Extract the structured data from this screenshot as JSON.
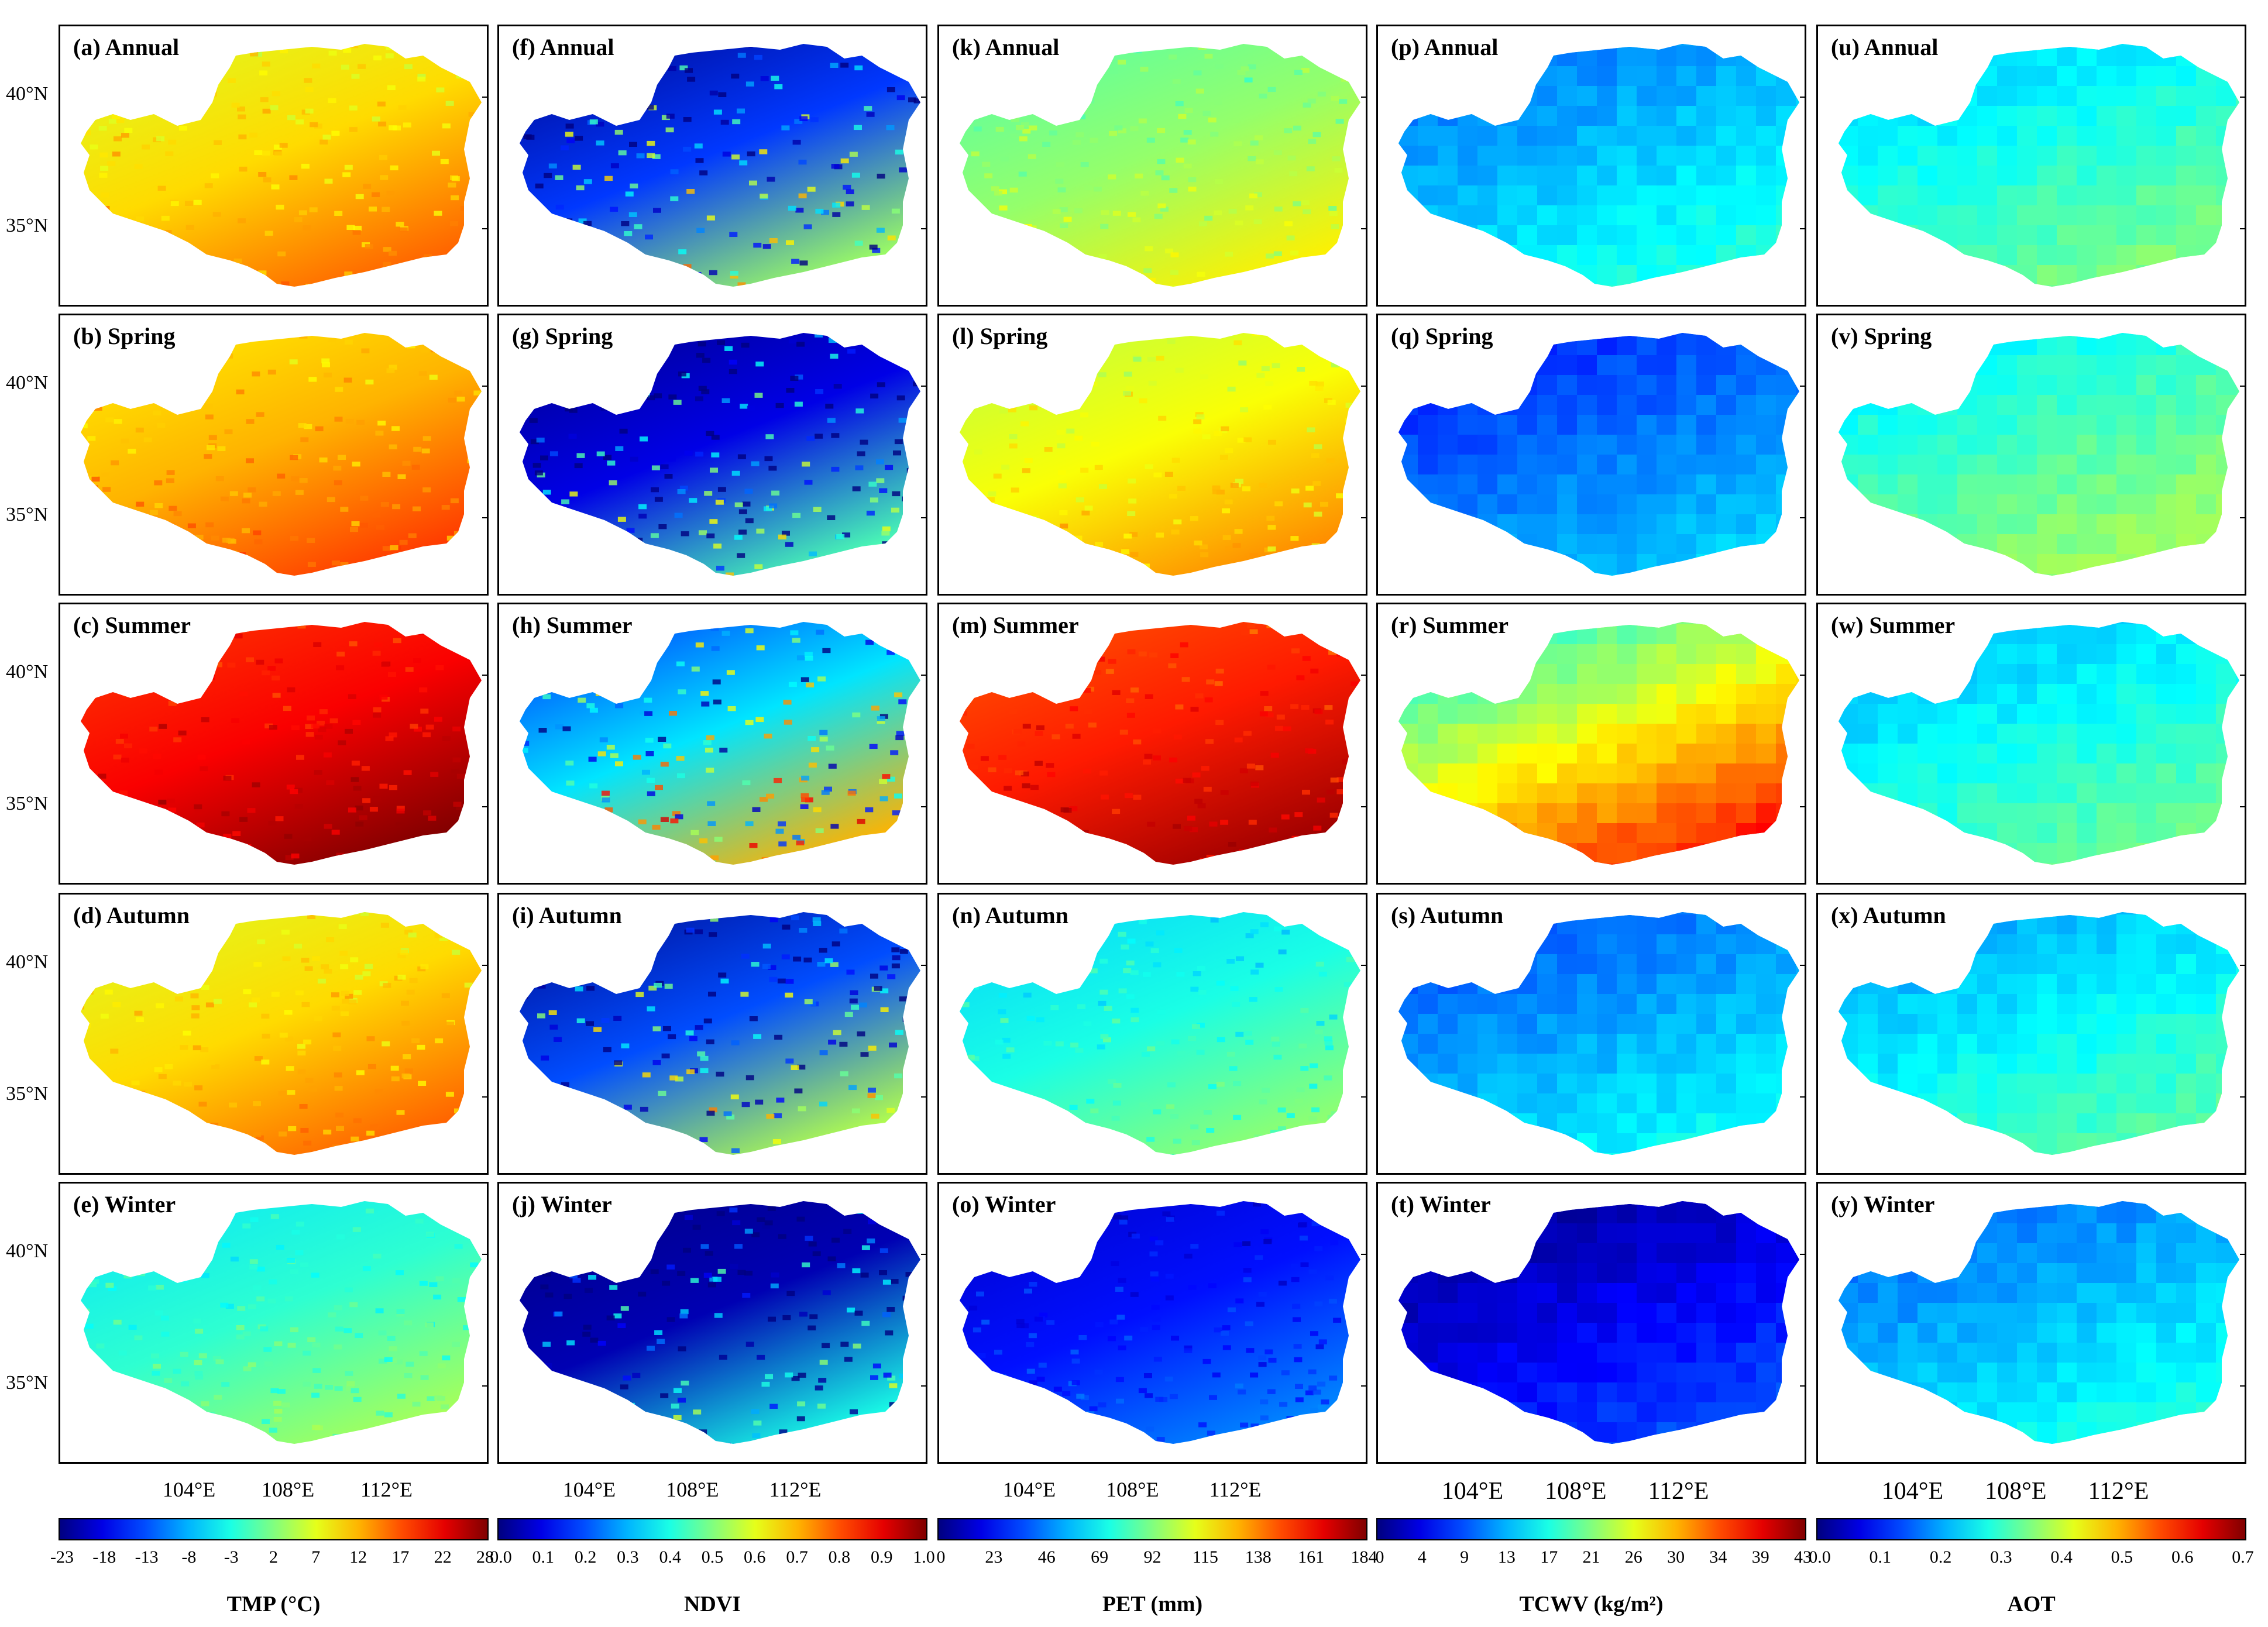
{
  "columns": [
    {
      "variable": "TMP",
      "colorbar_title": "TMP (°C)",
      "ticks": [
        "-23",
        "-18",
        "-13",
        "-8",
        "-3",
        "2",
        "7",
        "12",
        "17",
        "22",
        "28"
      ],
      "panels": [
        {
          "label": "(a) Annual",
          "level": 0.66
        },
        {
          "label": "(b) Spring",
          "level": 0.7
        },
        {
          "label": "(c) Summer",
          "level": 0.88
        },
        {
          "label": "(d) Autumn",
          "level": 0.66
        },
        {
          "label": "(e) Winter",
          "level": 0.42
        }
      ]
    },
    {
      "variable": "NDVI",
      "colorbar_title": "NDVI",
      "ticks": [
        "0.0",
        "0.1",
        "0.2",
        "0.3",
        "0.4",
        "0.5",
        "0.6",
        "0.7",
        "0.8",
        "0.9",
        "1.0"
      ],
      "panels": [
        {
          "label": "(f) Annual",
          "level": 0.18
        },
        {
          "label": "(g) Spring",
          "level": 0.1
        },
        {
          "label": "(h) Summer",
          "level": 0.35
        },
        {
          "label": "(i) Autumn",
          "level": 0.2
        },
        {
          "label": "(j) Winter",
          "level": 0.05
        }
      ]
    },
    {
      "variable": "PET",
      "colorbar_title": "PET (mm)",
      "ticks": [
        "0",
        "23",
        "46",
        "69",
        "92",
        "115",
        "138",
        "161",
        "184"
      ],
      "panels": [
        {
          "label": "(k) Annual",
          "level": 0.52
        },
        {
          "label": "(l) Spring",
          "level": 0.62
        },
        {
          "label": "(m) Summer",
          "level": 0.85
        },
        {
          "label": "(n) Autumn",
          "level": 0.4
        },
        {
          "label": "(o) Winter",
          "level": 0.14
        }
      ]
    },
    {
      "variable": "TCWV",
      "colorbar_title": "TCWV (kg/m²)",
      "ticks": [
        "0",
        "4",
        "9",
        "13",
        "17",
        "21",
        "26",
        "30",
        "34",
        "39",
        "43"
      ],
      "panels": [
        {
          "label": "(p) Annual",
          "level": 0.33
        },
        {
          "label": "(q) Spring",
          "level": 0.25
        },
        {
          "label": "(r) Summer",
          "level": 0.65
        },
        {
          "label": "(s) Autumn",
          "level": 0.3
        },
        {
          "label": "(t) Winter",
          "level": 0.12
        }
      ]
    },
    {
      "variable": "AOT",
      "colorbar_title": "AOT",
      "ticks": [
        "0.0",
        "0.1",
        "0.2",
        "0.3",
        "0.4",
        "0.5",
        "0.6",
        "0.7"
      ],
      "panels": [
        {
          "label": "(u) Annual",
          "level": 0.42
        },
        {
          "label": "(v) Spring",
          "level": 0.46
        },
        {
          "label": "(w) Summer",
          "level": 0.4
        },
        {
          "label": "(x) Autumn",
          "level": 0.38
        },
        {
          "label": "(y) Winter",
          "level": 0.32
        }
      ]
    }
  ],
  "latitude_labels": [
    "40°N",
    "35°N"
  ],
  "longitude_labels": [
    "104°E",
    "108°E",
    "112°E"
  ],
  "colormap": "jet",
  "colors": {
    "low": "#0000ff",
    "mid": "#00ffff",
    "high_mid": "#ffff00",
    "high": "#ff0000"
  }
}
